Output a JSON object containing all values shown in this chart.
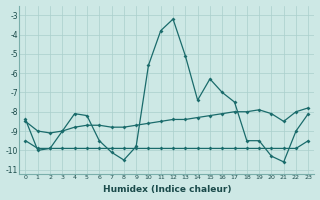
{
  "xlabel": "Humidex (Indice chaleur)",
  "background_color": "#cde8e5",
  "grid_color": "#aacfcc",
  "line_color": "#1a6b6b",
  "xlim": [
    -0.5,
    23.5
  ],
  "ylim": [
    -11.2,
    -2.5
  ],
  "yticks": [
    -11,
    -10,
    -9,
    -8,
    -7,
    -6,
    -5,
    -4,
    -3
  ],
  "xticks": [
    0,
    1,
    2,
    3,
    4,
    5,
    6,
    7,
    8,
    9,
    10,
    11,
    12,
    13,
    14,
    15,
    16,
    17,
    18,
    19,
    20,
    21,
    22,
    23
  ],
  "line1_x": [
    0,
    1,
    2,
    3,
    4,
    5,
    6,
    7,
    8,
    9,
    10,
    11,
    12,
    13,
    14,
    15,
    16,
    17,
    18,
    19,
    20,
    21,
    22,
    23
  ],
  "line1_y": [
    -8.4,
    -10.0,
    -9.9,
    -9.0,
    -8.1,
    -8.2,
    -9.5,
    -10.1,
    -10.5,
    -9.8,
    -5.6,
    -3.8,
    -3.2,
    -5.1,
    -7.4,
    -6.3,
    -7.0,
    -7.5,
    -9.5,
    -9.5,
    -10.3,
    -10.6,
    -9.0,
    -8.1
  ],
  "line2_x": [
    0,
    1,
    2,
    3,
    4,
    5,
    6,
    7,
    8,
    9,
    10,
    11,
    12,
    13,
    14,
    15,
    16,
    17,
    18,
    19,
    20,
    21,
    22,
    23
  ],
  "line2_y": [
    -8.5,
    -9.0,
    -9.1,
    -9.0,
    -8.8,
    -8.7,
    -8.7,
    -8.8,
    -8.8,
    -8.7,
    -8.6,
    -8.5,
    -8.4,
    -8.4,
    -8.3,
    -8.2,
    -8.1,
    -8.0,
    -8.0,
    -7.9,
    -8.1,
    -8.5,
    -8.0,
    -7.8
  ],
  "line3_x": [
    0,
    1,
    2,
    3,
    4,
    5,
    6,
    7,
    8,
    9,
    10,
    11,
    12,
    13,
    14,
    15,
    16,
    17,
    18,
    19,
    20,
    21,
    22,
    23
  ],
  "line3_y": [
    -9.5,
    -9.9,
    -9.9,
    -9.9,
    -9.9,
    -9.9,
    -9.9,
    -9.9,
    -9.9,
    -9.9,
    -9.9,
    -9.9,
    -9.9,
    -9.9,
    -9.9,
    -9.9,
    -9.9,
    -9.9,
    -9.9,
    -9.9,
    -9.9,
    -9.9,
    -9.9,
    -9.5
  ]
}
